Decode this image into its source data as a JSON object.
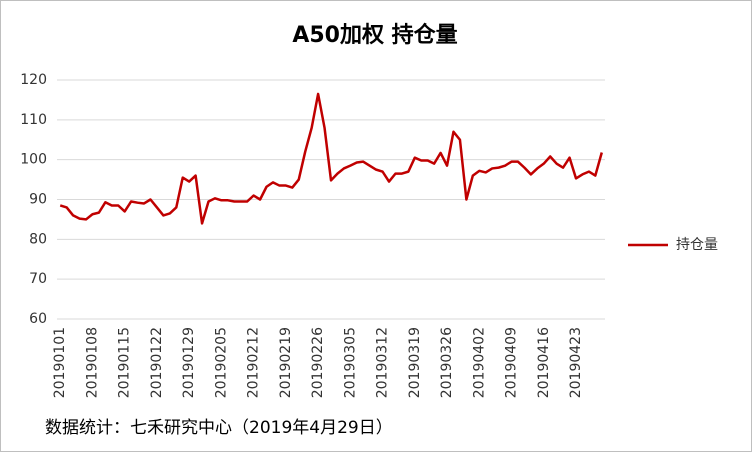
{
  "chart_data": {
    "type": "line",
    "title": "A50加权  持仓量",
    "footnote": "数据统计：七禾研究中心（2019年4月29日）",
    "categories": [
      "20190101",
      null,
      null,
      null,
      null,
      "20190108",
      null,
      null,
      null,
      null,
      "20190115",
      null,
      null,
      null,
      null,
      "20190122",
      null,
      null,
      null,
      null,
      "20190129",
      null,
      null,
      null,
      null,
      "20190205",
      null,
      null,
      null,
      null,
      "20190212",
      null,
      null,
      null,
      null,
      "20190219",
      null,
      null,
      null,
      null,
      "20190226",
      null,
      null,
      null,
      null,
      "20190305",
      null,
      null,
      null,
      null,
      "20190312",
      null,
      null,
      null,
      null,
      "20190319",
      null,
      null,
      null,
      null,
      "20190326",
      null,
      null,
      null,
      null,
      "20190402",
      null,
      null,
      null,
      null,
      "20190409",
      null,
      null,
      null,
      null,
      "20190416",
      null,
      null,
      null,
      null,
      "20190423",
      null,
      null,
      null,
      null
    ],
    "series": [
      {
        "name": "持仓量",
        "color": "#c00000",
        "values": [
          88.5,
          88,
          86,
          85.2,
          85,
          86.3,
          86.7,
          89.3,
          88.5,
          88.5,
          87,
          89.5,
          89.2,
          89,
          90,
          88,
          86,
          86.5,
          88,
          95.5,
          94.5,
          96,
          84,
          89.5,
          90.3,
          89.8,
          89.8,
          89.5,
          89.5,
          89.5,
          91,
          90,
          93.2,
          94.3,
          93.5,
          93.5,
          93,
          95,
          102,
          108,
          116.5,
          108,
          94.8,
          96.5,
          97.8,
          98.5,
          99.3,
          99.5,
          98.5,
          97.5,
          97,
          94.5,
          96.5,
          96.5,
          97,
          100.5,
          99.8,
          99.8,
          99,
          101.7,
          98.5,
          107,
          105,
          90,
          96,
          97.2,
          96.8,
          97.8,
          98,
          98.5,
          99.5,
          99.5,
          98,
          96.3,
          97.8,
          99,
          100.8,
          99,
          98,
          100.5,
          95.3,
          96.3,
          97,
          96,
          101.8
        ]
      }
    ],
    "ylim": [
      60,
      120
    ],
    "yticks": [
      60,
      70,
      80,
      90,
      100,
      110,
      120
    ],
    "grid": true,
    "legend": "right"
  }
}
